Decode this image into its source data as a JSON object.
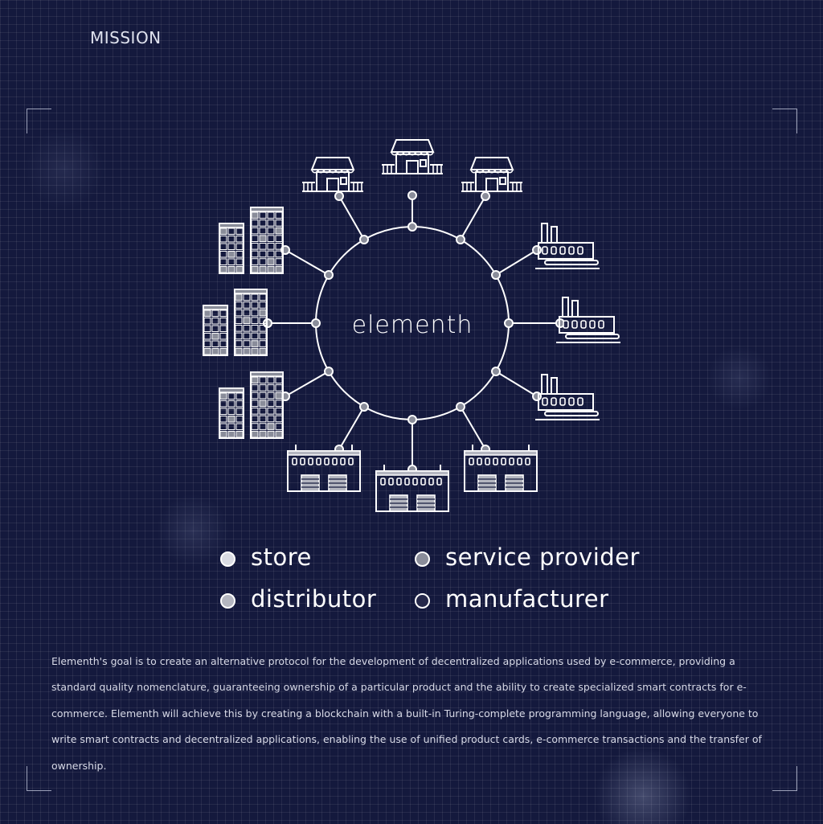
{
  "page": {
    "section_title": "MISSION"
  },
  "diagram": {
    "center_logo": "elementh",
    "colors": {
      "line": "#ffffff",
      "store_fill": "#d9dbe3",
      "service_provider_fill": "#8a8d9a",
      "distributor_fill": "#b4b6c0",
      "manufacturer_fill": "#25284a",
      "background": "#14193d"
    },
    "nodes": [
      {
        "id": "top",
        "icon": "store-icon",
        "category": "store"
      },
      {
        "id": "top-right",
        "icon": "store-icon",
        "category": "store"
      },
      {
        "id": "right-upper",
        "icon": "factory-icon",
        "category": "manufacturer"
      },
      {
        "id": "right",
        "icon": "factory-icon",
        "category": "manufacturer"
      },
      {
        "id": "right-lower",
        "icon": "factory-icon",
        "category": "manufacturer"
      },
      {
        "id": "bottom-right",
        "icon": "warehouse-icon",
        "category": "distributor"
      },
      {
        "id": "bottom",
        "icon": "warehouse-icon",
        "category": "distributor"
      },
      {
        "id": "bottom-left",
        "icon": "warehouse-icon",
        "category": "distributor"
      },
      {
        "id": "left-lower",
        "icon": "office-building-icon",
        "category": "service provider"
      },
      {
        "id": "left",
        "icon": "office-building-icon",
        "category": "service provider"
      },
      {
        "id": "left-upper",
        "icon": "office-building-icon",
        "category": "service provider"
      },
      {
        "id": "top-left",
        "icon": "store-icon",
        "category": "store"
      }
    ]
  },
  "legend": {
    "items": [
      {
        "label": "store",
        "color": "#d9dbe3"
      },
      {
        "label": "service provider",
        "color": "#8a8d9a"
      },
      {
        "label": "distributor",
        "color": "#b4b6c0"
      },
      {
        "label": "manufacturer",
        "color": "#25284a"
      }
    ]
  },
  "description": {
    "text": "Elementh's goal is to create an alternative protocol for the development of decentralized applications used by e-commerce, providing a standard quality nomenclature, guaranteeing ownership of a particular product and the ability to create specialized smart contracts for e-commerce. Elementh will achieve this by creating a blockchain with a built-in Turing-complete programming language, allowing everyone to write smart contracts and decentralized applications, enabling the use of unified product cards, e-commerce transactions and the transfer of ownership."
  }
}
